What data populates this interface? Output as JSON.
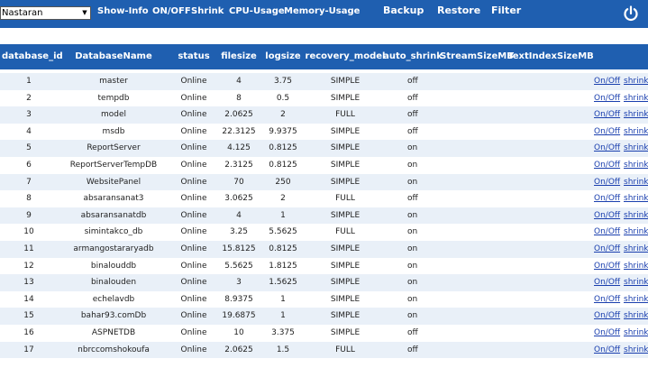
{
  "toolbar": {
    "database_select": "Nastaran",
    "links": [
      "Show-Info",
      "ON/OFF",
      "Shrink",
      "CPU-Usage",
      "Memory-Usage"
    ],
    "backup": "Backup",
    "restore": "Restore",
    "filter": "Filter",
    "power_icon": "power-icon"
  },
  "table": {
    "columns": [
      "database_id",
      "DatabaseName",
      "status",
      "filesize",
      "logsize",
      "recovery_model",
      "auto_shrink",
      "StreamSizeMB",
      "TextIndexSizeMB"
    ],
    "action_onoff": "On/Off",
    "action_shrink": "shrink",
    "rows": [
      {
        "id": "1",
        "name": "master",
        "status": "Online",
        "filesize": "4",
        "logsize": "3.75",
        "recovery": "SIMPLE",
        "auto_shrink": "off"
      },
      {
        "id": "2",
        "name": "tempdb",
        "status": "Online",
        "filesize": "8",
        "logsize": "0.5",
        "recovery": "SIMPLE",
        "auto_shrink": "off"
      },
      {
        "id": "3",
        "name": "model",
        "status": "Online",
        "filesize": "2.0625",
        "logsize": "2",
        "recovery": "FULL",
        "auto_shrink": "off"
      },
      {
        "id": "4",
        "name": "msdb",
        "status": "Online",
        "filesize": "22.3125",
        "logsize": "9.9375",
        "recovery": "SIMPLE",
        "auto_shrink": "off"
      },
      {
        "id": "5",
        "name": "ReportServer",
        "status": "Online",
        "filesize": "4.125",
        "logsize": "0.8125",
        "recovery": "SIMPLE",
        "auto_shrink": "on"
      },
      {
        "id": "6",
        "name": "ReportServerTempDB",
        "status": "Online",
        "filesize": "2.3125",
        "logsize": "0.8125",
        "recovery": "SIMPLE",
        "auto_shrink": "on"
      },
      {
        "id": "7",
        "name": "WebsitePanel",
        "status": "Online",
        "filesize": "70",
        "logsize": "250",
        "recovery": "SIMPLE",
        "auto_shrink": "on"
      },
      {
        "id": "8",
        "name": "absaransanat3",
        "status": "Online",
        "filesize": "3.0625",
        "logsize": "2",
        "recovery": "FULL",
        "auto_shrink": "off"
      },
      {
        "id": "9",
        "name": "absaransanatdb",
        "status": "Online",
        "filesize": "4",
        "logsize": "1",
        "recovery": "SIMPLE",
        "auto_shrink": "on"
      },
      {
        "id": "10",
        "name": "simintakco_db",
        "status": "Online",
        "filesize": "3.25",
        "logsize": "5.5625",
        "recovery": "FULL",
        "auto_shrink": "on"
      },
      {
        "id": "11",
        "name": "armangostararyadb",
        "status": "Online",
        "filesize": "15.8125",
        "logsize": "0.8125",
        "recovery": "SIMPLE",
        "auto_shrink": "on"
      },
      {
        "id": "12",
        "name": "binalouddb",
        "status": "Online",
        "filesize": "5.5625",
        "logsize": "1.8125",
        "recovery": "SIMPLE",
        "auto_shrink": "on"
      },
      {
        "id": "13",
        "name": "binalouden",
        "status": "Online",
        "filesize": "3",
        "logsize": "1.5625",
        "recovery": "SIMPLE",
        "auto_shrink": "on"
      },
      {
        "id": "14",
        "name": "echelavdb",
        "status": "Online",
        "filesize": "8.9375",
        "logsize": "1",
        "recovery": "SIMPLE",
        "auto_shrink": "on"
      },
      {
        "id": "15",
        "name": "bahar93.comDb",
        "status": "Online",
        "filesize": "19.6875",
        "logsize": "1",
        "recovery": "SIMPLE",
        "auto_shrink": "on"
      },
      {
        "id": "16",
        "name": "ASPNETDB",
        "status": "Online",
        "filesize": "10",
        "logsize": "3.375",
        "recovery": "SIMPLE",
        "auto_shrink": "off"
      },
      {
        "id": "17",
        "name": "nbrccomshokoufa",
        "status": "Online",
        "filesize": "2.0625",
        "logsize": "1.5",
        "recovery": "FULL",
        "auto_shrink": "off"
      }
    ]
  }
}
